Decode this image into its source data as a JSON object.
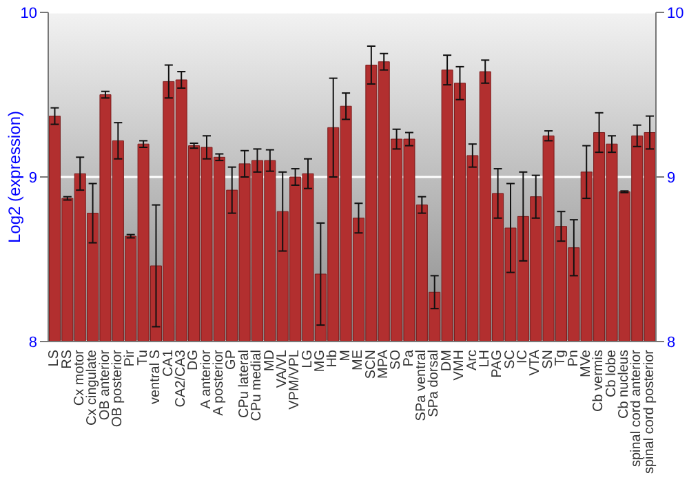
{
  "chart_data": {
    "type": "bar",
    "ylabel": "Log2 (expression)",
    "categories": [
      "LS",
      "RS",
      "Cx motor",
      "Cx cingulate",
      "OB anterior",
      "OB posterior",
      "Pir",
      "Tu",
      "ventral S",
      "CA1",
      "CA2/CA3",
      "DG",
      "A anterior",
      "A posterior",
      "GP",
      "CPu lateral",
      "CPu medial",
      "MD",
      "VA/VL",
      "VPM/VPL",
      "LG",
      "MG",
      "Hb",
      "M",
      "ME",
      "SCN",
      "MPA",
      "SO",
      "Pa",
      "SPa ventral",
      "SPa dorsal",
      "DM",
      "VMH",
      "Arc",
      "LH",
      "PAG",
      "SC",
      "IC",
      "VTA",
      "SN",
      "Tg",
      "Pn",
      "MVe",
      "Cb vermis",
      "Cb lobe",
      "Cb nucleus",
      "spinal cord anterior",
      "spinal cord posterior"
    ],
    "values": [
      9.37,
      8.87,
      9.02,
      8.78,
      9.5,
      9.22,
      8.64,
      9.2,
      8.46,
      9.58,
      9.59,
      9.19,
      9.18,
      9.12,
      8.92,
      9.08,
      9.1,
      9.1,
      8.79,
      9.0,
      9.02,
      8.41,
      9.3,
      9.43,
      8.75,
      9.68,
      9.7,
      9.23,
      9.23,
      8.83,
      8.3,
      9.65,
      9.57,
      9.13,
      9.64,
      8.9,
      8.69,
      8.76,
      8.88,
      9.25,
      8.7,
      8.57,
      9.03,
      9.27,
      9.2,
      8.91,
      9.25,
      9.27
    ],
    "errors": [
      0.05,
      0.01,
      0.1,
      0.18,
      0.02,
      0.11,
      0.01,
      0.02,
      0.37,
      0.1,
      0.05,
      0.015,
      0.07,
      0.02,
      0.14,
      0.08,
      0.07,
      0.065,
      0.24,
      0.05,
      0.09,
      0.31,
      0.3,
      0.08,
      0.09,
      0.115,
      0.05,
      0.06,
      0.04,
      0.05,
      0.1,
      0.09,
      0.1,
      0.07,
      0.07,
      0.15,
      0.27,
      0.27,
      0.13,
      0.03,
      0.09,
      0.17,
      0.16,
      0.12,
      0.05,
      0.005,
      0.065,
      0.1
    ],
    "color": "#b22f2f",
    "ylim": [
      8,
      10
    ],
    "yticks": [
      8,
      9,
      10
    ],
    "y2lim": [
      8,
      10
    ],
    "y2ticks": [
      8,
      9,
      10
    ],
    "grid": "y"
  }
}
